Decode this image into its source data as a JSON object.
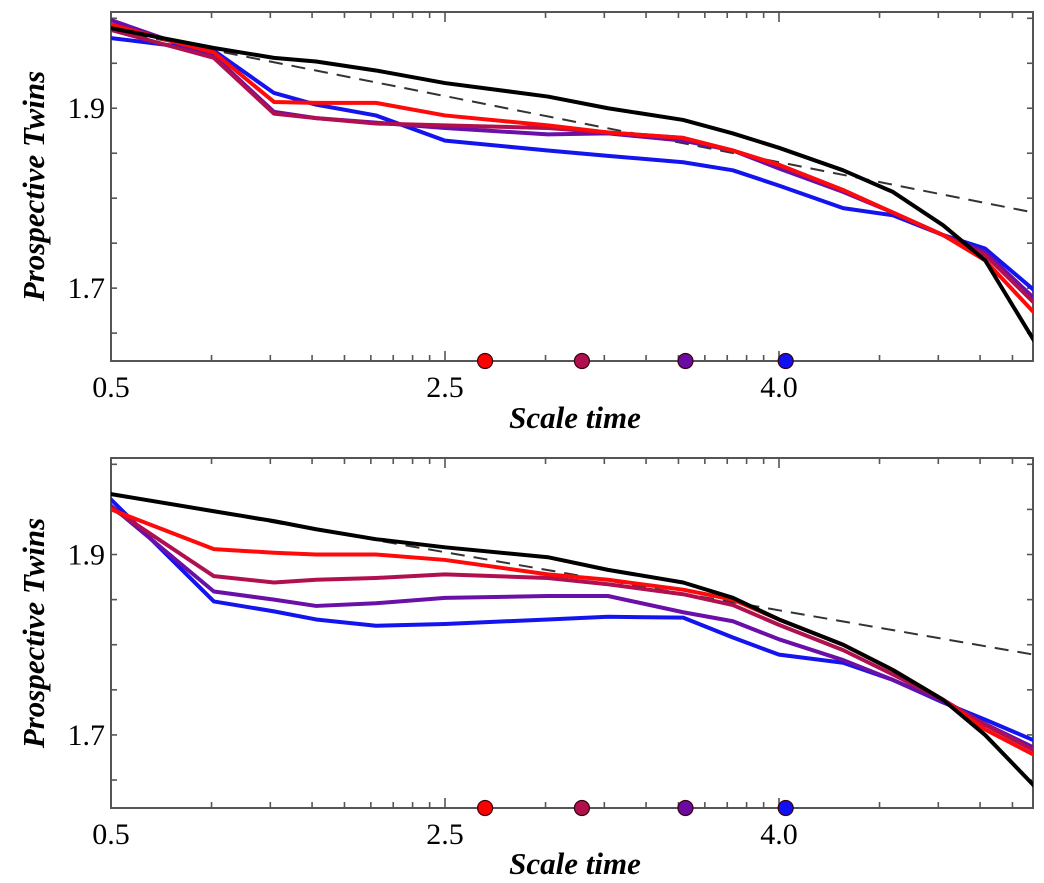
{
  "chart_data": [
    {
      "type": "line",
      "panel": "top",
      "title": "",
      "xlabel": "Scale time",
      "ylabel": "Prospective Twins",
      "xscale": "log",
      "x_units_note": "x values given in decades from the first labeled tick",
      "xlim": [
        0,
        2.763
      ],
      "ylim": [
        1.619,
        2.007
      ],
      "xticks": [
        {
          "pos": 0,
          "label": "0.5"
        },
        {
          "pos": 1,
          "label": "2.5"
        },
        {
          "pos": 2,
          "label": "4.0"
        }
      ],
      "yticks": [
        {
          "value": 1.9,
          "label": "1.9"
        },
        {
          "value": 1.7,
          "label": "1.7"
        }
      ],
      "y_minor_step": 0.05,
      "grid": false,
      "x": [
        0,
        0.308,
        0.488,
        0.614,
        0.793,
        1.0,
        1.308,
        1.488,
        1.713,
        1.862,
        2.0,
        2.192,
        2.341,
        2.491,
        2.617,
        2.763
      ],
      "series": [
        {
          "name": "reference",
          "color": "#000000",
          "values": [
            1.989,
            1.967,
            1.956,
            1.952,
            1.942,
            1.928,
            1.913,
            1.9,
            1.887,
            1.872,
            1.856,
            1.831,
            1.807,
            1.77,
            1.731,
            1.642
          ]
        },
        {
          "name": "red",
          "color": "#ff0a0a",
          "values": [
            1.993,
            1.962,
            1.907,
            1.906,
            1.906,
            1.892,
            1.881,
            1.873,
            1.867,
            1.853,
            1.837,
            1.809,
            1.784,
            1.759,
            1.731,
            1.673
          ]
        },
        {
          "name": "crimson",
          "color": "#b01050",
          "values": [
            1.987,
            1.956,
            1.894,
            1.889,
            1.883,
            1.881,
            1.878,
            1.873,
            1.867,
            1.853,
            1.837,
            1.809,
            1.784,
            1.759,
            1.737,
            1.684
          ]
        },
        {
          "name": "purple",
          "color": "#6a10a8",
          "values": [
            1.998,
            1.958,
            1.896,
            1.889,
            1.884,
            1.878,
            1.871,
            1.872,
            1.864,
            1.853,
            1.833,
            1.807,
            1.784,
            1.759,
            1.74,
            1.689
          ]
        },
        {
          "name": "blue",
          "color": "#1414ee",
          "values": [
            1.978,
            1.964,
            1.917,
            1.904,
            1.892,
            1.864,
            1.853,
            1.847,
            1.84,
            1.831,
            1.814,
            1.789,
            1.781,
            1.759,
            1.744,
            1.698
          ]
        }
      ],
      "asymptote": {
        "name": "dashed-asymptote",
        "color": "#333333",
        "x": [
          0,
          2.763
        ],
        "values": [
          1.987,
          1.784
        ]
      },
      "markers": [
        {
          "name": "red-marker",
          "x": 1.12,
          "color": "#ff0000"
        },
        {
          "name": "crimson-marker",
          "x": 1.41,
          "color": "#b0104c"
        },
        {
          "name": "purple-marker",
          "x": 1.72,
          "color": "#6a0aa0"
        },
        {
          "name": "blue-marker",
          "x": 2.02,
          "color": "#1010f0"
        }
      ]
    },
    {
      "type": "line",
      "panel": "bottom",
      "title": "",
      "xlabel": "Scale time",
      "ylabel": "Prospective Twins",
      "xscale": "log",
      "x_units_note": "x values given in decades from the first labeled tick",
      "xlim": [
        0,
        2.763
      ],
      "ylim": [
        1.619,
        2.007
      ],
      "xticks": [
        {
          "pos": 0,
          "label": "0.5"
        },
        {
          "pos": 1,
          "label": "2.5"
        },
        {
          "pos": 2,
          "label": "4.0"
        }
      ],
      "yticks": [
        {
          "value": 1.9,
          "label": "1.9"
        },
        {
          "value": 1.7,
          "label": "1.7"
        }
      ],
      "y_minor_step": 0.05,
      "grid": false,
      "x": [
        0,
        0.308,
        0.488,
        0.614,
        0.793,
        1.0,
        1.308,
        1.488,
        1.713,
        1.862,
        2.0,
        2.192,
        2.341,
        2.491,
        2.617,
        2.763
      ],
      "series": [
        {
          "name": "reference",
          "color": "#000000",
          "values": [
            1.967,
            1.948,
            1.937,
            1.928,
            1.917,
            1.908,
            1.897,
            1.883,
            1.869,
            1.852,
            1.828,
            1.8,
            1.772,
            1.739,
            1.7,
            1.644
          ]
        },
        {
          "name": "red",
          "color": "#ff0a0a",
          "values": [
            1.95,
            1.906,
            1.902,
            1.9,
            1.9,
            1.894,
            1.878,
            1.872,
            1.861,
            1.85,
            1.828,
            1.8,
            1.772,
            1.739,
            1.706,
            1.678
          ]
        },
        {
          "name": "crimson",
          "color": "#b01050",
          "values": [
            1.952,
            1.876,
            1.869,
            1.872,
            1.874,
            1.878,
            1.874,
            1.867,
            1.856,
            1.844,
            1.822,
            1.794,
            1.767,
            1.739,
            1.711,
            1.683
          ]
        },
        {
          "name": "purple",
          "color": "#6a10a8",
          "values": [
            1.954,
            1.859,
            1.85,
            1.843,
            1.846,
            1.852,
            1.854,
            1.854,
            1.836,
            1.826,
            1.806,
            1.783,
            1.761,
            1.737,
            1.712,
            1.686
          ]
        },
        {
          "name": "blue",
          "color": "#1414ee",
          "values": [
            1.961,
            1.848,
            1.837,
            1.828,
            1.821,
            1.823,
            1.828,
            1.831,
            1.83,
            1.808,
            1.789,
            1.78,
            1.761,
            1.736,
            1.717,
            1.694
          ]
        }
      ],
      "asymptote": {
        "name": "dashed-asymptote",
        "color": "#333333",
        "x": [
          0,
          2.763
        ],
        "values": [
          1.967,
          1.789
        ]
      },
      "markers": [
        {
          "name": "red-marker",
          "x": 1.12,
          "color": "#ff0000"
        },
        {
          "name": "crimson-marker",
          "x": 1.41,
          "color": "#b0104c"
        },
        {
          "name": "purple-marker",
          "x": 1.72,
          "color": "#6a0aa0"
        },
        {
          "name": "blue-marker",
          "x": 2.02,
          "color": "#1010f0"
        }
      ]
    }
  ]
}
